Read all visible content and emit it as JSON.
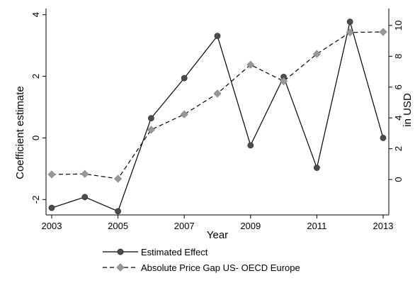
{
  "chart_data": {
    "type": "line",
    "x_label": "Year",
    "y_left_label": "Coefficient estimate",
    "y_right_label": "in USD",
    "x_ticks": [
      2003,
      2005,
      2007,
      2009,
      2011,
      2013
    ],
    "y_left_ticks": [
      "-2",
      "0",
      "2",
      "4"
    ],
    "y_right_ticks": [
      "0",
      "2",
      "4",
      "6",
      "8",
      "10"
    ],
    "x_range": [
      2003,
      2013
    ],
    "y_left_range": [
      -2.5,
      4.2
    ],
    "y_right_range": [
      -2.3,
      11.1
    ],
    "series": [
      {
        "name": "Estimated Effect",
        "axis": "left",
        "style": "solid",
        "marker": "circle",
        "color": "#4d4d4d",
        "x": [
          2003,
          2004,
          2005,
          2006,
          2007,
          2008,
          2009,
          2010,
          2011,
          2012,
          2013
        ],
        "y": [
          -2.27,
          -1.92,
          -2.38,
          0.64,
          1.94,
          3.31,
          -0.24,
          1.98,
          -0.97,
          3.77,
          0.0
        ]
      },
      {
        "name": "Absolute Price Gap US- OECD Europe",
        "axis": "right",
        "style": "dashed",
        "marker": "diamond",
        "color": "#999999",
        "x": [
          2003,
          2004,
          2005,
          2006,
          2007,
          2008,
          2009,
          2010,
          2011,
          2012,
          2013
        ],
        "y": [
          0.33,
          0.36,
          0.05,
          3.23,
          4.23,
          5.58,
          7.45,
          6.38,
          8.15,
          9.55,
          9.58
        ]
      }
    ],
    "legend_position": "bottom"
  }
}
